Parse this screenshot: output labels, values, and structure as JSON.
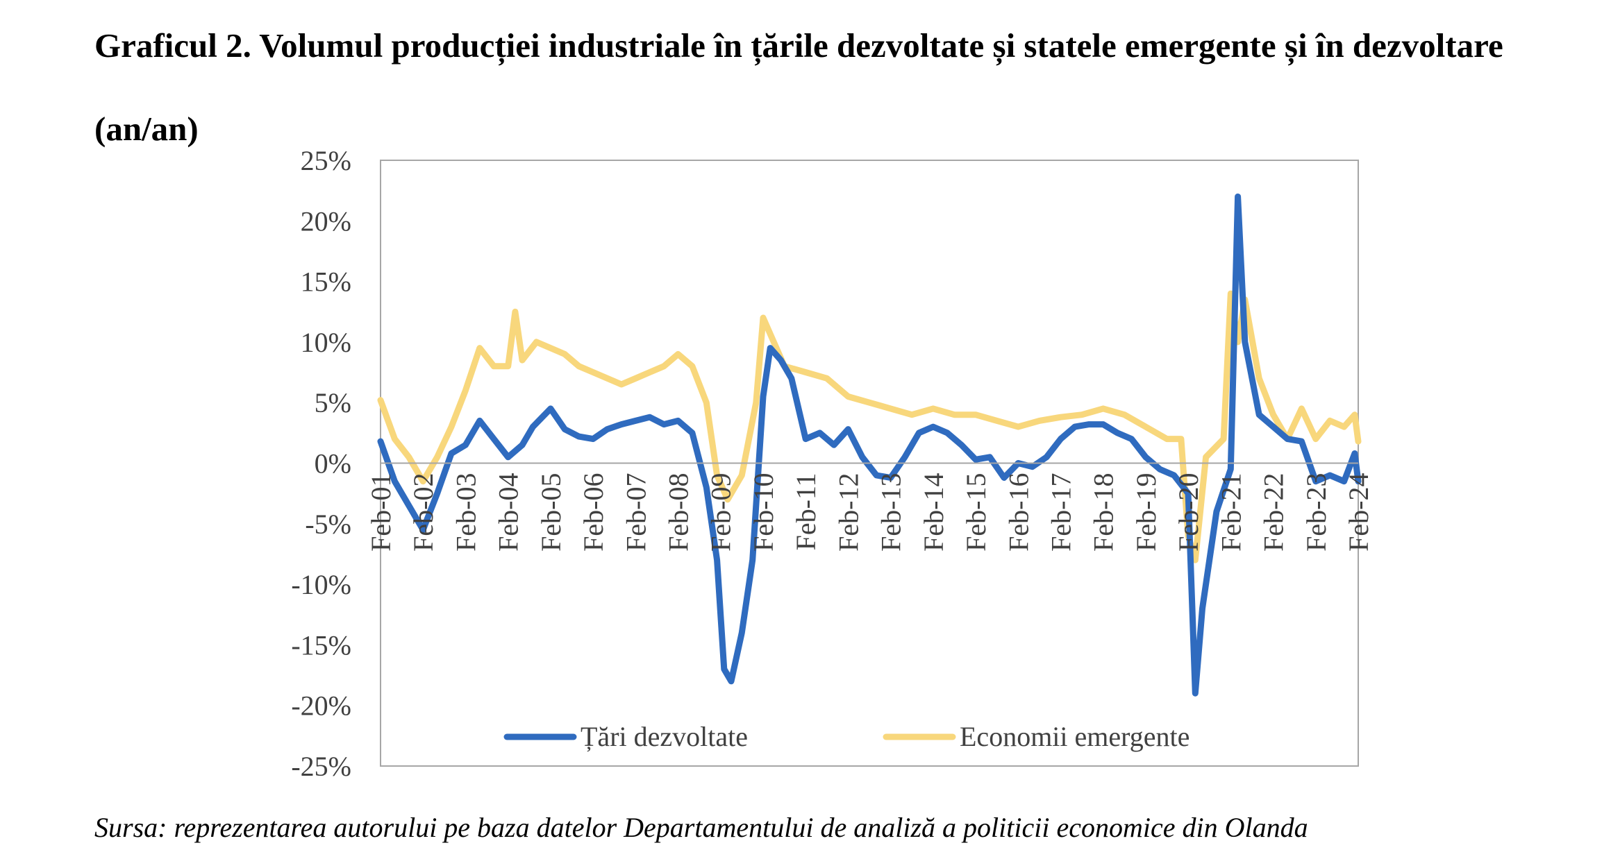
{
  "title": "Graficul 2. Volumul producției industriale în țările dezvoltate și statele emergente și în dezvoltare (an/an)",
  "source": "Sursa: reprezentarea autorului pe baza datelor Departamentului de analiză a politicii economice din Olanda",
  "colors": {
    "developed": "#2F6BBF",
    "emerging": "#F8D77C",
    "frame": "#A6A6A6"
  },
  "chart_data": {
    "type": "line",
    "title": "",
    "xlabel": "",
    "ylabel": "",
    "ylim": [
      -25,
      25
    ],
    "yticks": [
      25,
      20,
      15,
      10,
      5,
      0,
      -5,
      -10,
      -15,
      -20,
      -25
    ],
    "ytick_labels": [
      "25%",
      "20%",
      "15%",
      "10%",
      "5%",
      "0%",
      "-5%",
      "-10%",
      "-15%",
      "-20%",
      "-25%"
    ],
    "x_labels": [
      "Feb-01",
      "Feb-02",
      "Feb-03",
      "Feb-04",
      "Feb-05",
      "Feb-06",
      "Feb-07",
      "Feb-08",
      "Feb-09",
      "Feb-10",
      "Feb-11",
      "Feb-12",
      "Feb-13",
      "Feb-14",
      "Feb-15",
      "Feb-16",
      "Feb-17",
      "Feb-18",
      "Feb-19",
      "Feb-20",
      "Feb-21",
      "Feb-22",
      "Feb-23",
      "Feb-24"
    ],
    "x_start": "Feb-01",
    "x_end": "Feb-24",
    "legend_position": "bottom",
    "grid": false,
    "series": [
      {
        "name": "Țări dezvoltate",
        "points": [
          [
            "Feb-01",
            1.8
          ],
          [
            "Jun-01",
            -1.5
          ],
          [
            "Oct-01",
            -3.5
          ],
          [
            "Feb-02",
            -5.5
          ],
          [
            "Jun-02",
            -2.5
          ],
          [
            "Oct-02",
            0.8
          ],
          [
            "Feb-03",
            1.5
          ],
          [
            "Jun-03",
            3.5
          ],
          [
            "Oct-03",
            2.0
          ],
          [
            "Feb-04",
            0.5
          ],
          [
            "Jun-04",
            1.5
          ],
          [
            "Sep-04",
            3.0
          ],
          [
            "Feb-05",
            4.5
          ],
          [
            "Jun-05",
            2.8
          ],
          [
            "Oct-05",
            2.2
          ],
          [
            "Feb-06",
            2.0
          ],
          [
            "Jun-06",
            2.8
          ],
          [
            "Oct-06",
            3.2
          ],
          [
            "Feb-07",
            3.5
          ],
          [
            "Jun-07",
            3.8
          ],
          [
            "Oct-07",
            3.2
          ],
          [
            "Feb-08",
            3.5
          ],
          [
            "Jun-08",
            2.5
          ],
          [
            "Oct-08",
            -2.0
          ],
          [
            "Jan-09",
            -8.0
          ],
          [
            "Mar-09",
            -17.0
          ],
          [
            "May-09",
            -18.0
          ],
          [
            "Aug-09",
            -14.0
          ],
          [
            "Nov-09",
            -8.0
          ],
          [
            "Feb-10",
            5.5
          ],
          [
            "Apr-10",
            9.5
          ],
          [
            "Jul-10",
            8.5
          ],
          [
            "Oct-10",
            7.0
          ],
          [
            "Feb-11",
            2.0
          ],
          [
            "Jun-11",
            2.5
          ],
          [
            "Oct-11",
            1.5
          ],
          [
            "Feb-12",
            2.8
          ],
          [
            "Jun-12",
            0.5
          ],
          [
            "Oct-12",
            -1.0
          ],
          [
            "Feb-13",
            -1.2
          ],
          [
            "Jun-13",
            0.5
          ],
          [
            "Oct-13",
            2.5
          ],
          [
            "Feb-14",
            3.0
          ],
          [
            "Jun-14",
            2.5
          ],
          [
            "Oct-14",
            1.5
          ],
          [
            "Feb-15",
            0.3
          ],
          [
            "Jun-15",
            0.5
          ],
          [
            "Oct-15",
            -1.2
          ],
          [
            "Feb-16",
            0.0
          ],
          [
            "Jun-16",
            -0.3
          ],
          [
            "Oct-16",
            0.5
          ],
          [
            "Feb-17",
            2.0
          ],
          [
            "Jun-17",
            3.0
          ],
          [
            "Oct-17",
            3.2
          ],
          [
            "Feb-18",
            3.2
          ],
          [
            "Jun-18",
            2.5
          ],
          [
            "Oct-18",
            2.0
          ],
          [
            "Feb-19",
            0.5
          ],
          [
            "Jun-19",
            -0.5
          ],
          [
            "Oct-19",
            -1.0
          ],
          [
            "Feb-20",
            -2.5
          ],
          [
            "Apr-20",
            -19.0
          ],
          [
            "Jun-20",
            -12.0
          ],
          [
            "Oct-20",
            -4.0
          ],
          [
            "Feb-21",
            -0.5
          ],
          [
            "Apr-21",
            22.0
          ],
          [
            "Jun-21",
            10.0
          ],
          [
            "Oct-21",
            4.0
          ],
          [
            "Feb-22",
            3.0
          ],
          [
            "Jun-22",
            2.0
          ],
          [
            "Oct-22",
            1.8
          ],
          [
            "Feb-23",
            -1.5
          ],
          [
            "Jun-23",
            -1.0
          ],
          [
            "Oct-23",
            -1.5
          ],
          [
            "Jan-24",
            0.8
          ],
          [
            "Feb-24",
            -1.5
          ]
        ]
      },
      {
        "name": "Economii emergente",
        "points": [
          [
            "Feb-01",
            5.2
          ],
          [
            "Jun-01",
            2.0
          ],
          [
            "Oct-01",
            0.5
          ],
          [
            "Feb-02",
            -1.5
          ],
          [
            "Jun-02",
            0.5
          ],
          [
            "Oct-02",
            3.0
          ],
          [
            "Feb-03",
            6.0
          ],
          [
            "Jun-03",
            9.5
          ],
          [
            "Oct-03",
            8.0
          ],
          [
            "Feb-04",
            8.0
          ],
          [
            "Apr-04",
            12.5
          ],
          [
            "Jun-04",
            8.5
          ],
          [
            "Oct-04",
            10.0
          ],
          [
            "Feb-05",
            9.5
          ],
          [
            "Jun-05",
            9.0
          ],
          [
            "Oct-05",
            8.0
          ],
          [
            "Feb-06",
            7.5
          ],
          [
            "Jun-06",
            7.0
          ],
          [
            "Oct-06",
            6.5
          ],
          [
            "Feb-07",
            7.0
          ],
          [
            "Jun-07",
            7.5
          ],
          [
            "Oct-07",
            8.0
          ],
          [
            "Feb-08",
            9.0
          ],
          [
            "Jun-08",
            8.0
          ],
          [
            "Oct-08",
            5.0
          ],
          [
            "Jan-09",
            -1.0
          ],
          [
            "Apr-09",
            -3.0
          ],
          [
            "Aug-09",
            -1.0
          ],
          [
            "Dec-09",
            5.0
          ],
          [
            "Feb-10",
            12.0
          ],
          [
            "May-10",
            10.0
          ],
          [
            "Aug-10",
            8.0
          ],
          [
            "Feb-11",
            7.5
          ],
          [
            "Aug-11",
            7.0
          ],
          [
            "Feb-12",
            5.5
          ],
          [
            "Aug-12",
            5.0
          ],
          [
            "Feb-13",
            4.5
          ],
          [
            "Aug-13",
            4.0
          ],
          [
            "Feb-14",
            4.5
          ],
          [
            "Aug-14",
            4.0
          ],
          [
            "Feb-15",
            4.0
          ],
          [
            "Aug-15",
            3.5
          ],
          [
            "Feb-16",
            3.0
          ],
          [
            "Aug-16",
            3.5
          ],
          [
            "Feb-17",
            3.8
          ],
          [
            "Aug-17",
            4.0
          ],
          [
            "Feb-18",
            4.5
          ],
          [
            "Aug-18",
            4.0
          ],
          [
            "Feb-19",
            3.0
          ],
          [
            "Aug-19",
            2.0
          ],
          [
            "Dec-19",
            2.0
          ],
          [
            "Feb-20",
            -6.0
          ],
          [
            "Apr-20",
            -8.0
          ],
          [
            "Jul-20",
            0.5
          ],
          [
            "Dec-20",
            2.0
          ],
          [
            "Feb-21",
            14.0
          ],
          [
            "Apr-21",
            10.0
          ],
          [
            "Jun-21",
            13.5
          ],
          [
            "Oct-21",
            7.0
          ],
          [
            "Feb-22",
            4.0
          ],
          [
            "Jun-22",
            2.0
          ],
          [
            "Oct-22",
            4.5
          ],
          [
            "Feb-23",
            2.0
          ],
          [
            "Jun-23",
            3.5
          ],
          [
            "Oct-23",
            3.0
          ],
          [
            "Jan-24",
            4.0
          ],
          [
            "Feb-24",
            1.8
          ]
        ]
      }
    ]
  }
}
